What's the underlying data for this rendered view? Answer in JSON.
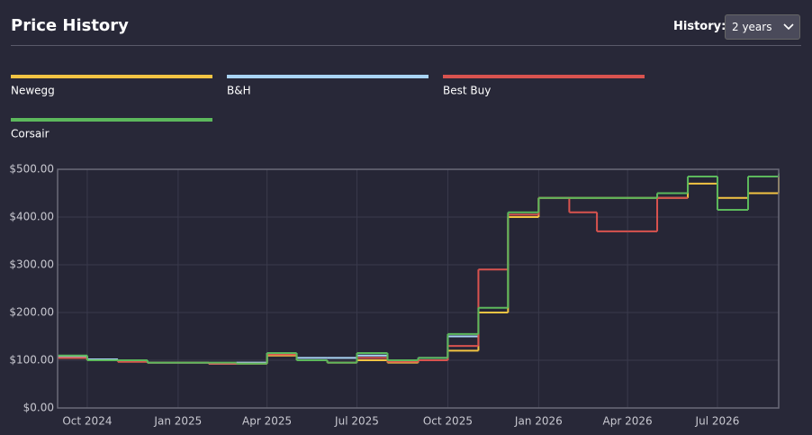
{
  "header": {
    "title": "Price History",
    "history_label": "History:",
    "range_option": "2 years"
  },
  "chart_data": {
    "type": "line",
    "step": "post",
    "x": [
      "2024-09",
      "2024-10",
      "2024-11",
      "2024-12",
      "2025-01",
      "2025-02",
      "2025-03",
      "2025-04",
      "2025-05",
      "2025-06",
      "2025-07",
      "2025-08",
      "2025-09",
      "2025-10",
      "2025-11",
      "2025-12",
      "2026-01",
      "2026-02",
      "2026-03",
      "2026-04",
      "2026-05",
      "2026-06",
      "2026-07",
      "2026-08",
      "2026-09"
    ],
    "series": [
      {
        "name": "Newegg",
        "color": "#f2c443",
        "values": [
          105,
          100,
          97,
          95,
          95,
          93,
          93,
          110,
          100,
          95,
          100,
          95,
          100,
          120,
          200,
          400,
          440,
          440,
          440,
          440,
          440,
          470,
          440,
          450,
          485
        ]
      },
      {
        "name": "B&H",
        "color": "#a9d4f5",
        "values": [
          108,
          102,
          98,
          95,
          95,
          93,
          95,
          115,
          105,
          105,
          110,
          100,
          105,
          150,
          null,
          null,
          null,
          null,
          null,
          null,
          null,
          null,
          null,
          null,
          null
        ]
      },
      {
        "name": "Best Buy",
        "color": "#d9534f",
        "values": [
          105,
          100,
          97,
          95,
          95,
          93,
          93,
          112,
          100,
          95,
          105,
          97,
          100,
          130,
          290,
          405,
          440,
          410,
          370,
          370,
          440,
          null,
          null,
          null,
          null
        ]
      },
      {
        "name": "Corsair",
        "color": "#5cb85c",
        "values": [
          110,
          100,
          100,
          95,
          95,
          95,
          93,
          115,
          100,
          95,
          115,
          100,
          105,
          155,
          210,
          410,
          440,
          440,
          440,
          440,
          450,
          485,
          415,
          485,
          490
        ]
      }
    ],
    "xlim": [
      "2024-09",
      "2026-09"
    ],
    "xticks": [
      {
        "value": "2024-10",
        "label": "Oct 2024"
      },
      {
        "value": "2025-01",
        "label": "Jan 2025"
      },
      {
        "value": "2025-04",
        "label": "Apr 2025"
      },
      {
        "value": "2025-07",
        "label": "Jul 2025"
      },
      {
        "value": "2025-10",
        "label": "Oct 2025"
      },
      {
        "value": "2026-01",
        "label": "Jan 2026"
      },
      {
        "value": "2026-04",
        "label": "Apr 2026"
      },
      {
        "value": "2026-07",
        "label": "Jul 2026"
      }
    ],
    "ylim": [
      0,
      500
    ],
    "yticks": [
      {
        "value": 0,
        "label": "$0.00"
      },
      {
        "value": 100,
        "label": "$100.00"
      },
      {
        "value": 200,
        "label": "$200.00"
      },
      {
        "value": 300,
        "label": "$300.00"
      },
      {
        "value": 400,
        "label": "$400.00"
      },
      {
        "value": 500,
        "label": "$500.00"
      }
    ],
    "grid": true
  }
}
